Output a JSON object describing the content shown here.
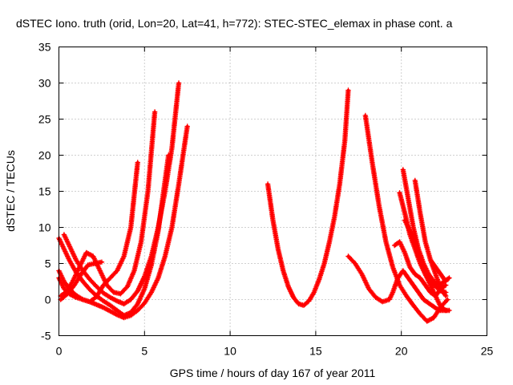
{
  "chart_data": {
    "type": "scatter",
    "title": "dSTEC Iono. truth (orid, Lon=20, Lat=41, h=772): STEC-STEC_elemax in phase cont. a",
    "xlabel": "GPS time / hours of day 167 of year 2011",
    "ylabel": "dSTEC  / TECUs",
    "xlim": [
      0,
      25
    ],
    "ylim": [
      -5,
      35
    ],
    "x_ticks": [
      0,
      5,
      10,
      15,
      20,
      25
    ],
    "x_tick_labels": [
      "0",
      "5",
      "10",
      "15",
      "20",
      "25"
    ],
    "y_ticks": [
      -5,
      0,
      5,
      10,
      15,
      20,
      25,
      30,
      35
    ],
    "y_tick_labels": [
      "-5",
      "0",
      "5",
      "10",
      "15",
      "20",
      "25",
      "30",
      "35"
    ],
    "grid": true,
    "marker": "+",
    "color": "#ff0000",
    "series": [
      {
        "x": [
          0.0,
          0.3,
          0.6,
          1.0,
          1.4,
          1.8,
          2.2,
          2.6,
          3.0,
          3.4,
          3.8,
          4.2,
          4.6,
          5.0,
          5.4,
          5.8,
          6.2,
          6.6,
          7.0,
          7.5
        ],
        "values": [
          3.0,
          1.5,
          0.8,
          0.3,
          0.0,
          -0.3,
          -0.7,
          -1.1,
          -1.6,
          -2.1,
          -2.5,
          -2.2,
          -1.5,
          -0.5,
          1.0,
          3.0,
          6.0,
          10.0,
          16.0,
          24.0
        ]
      },
      {
        "x": [
          0.3,
          0.6,
          1.0,
          1.4,
          1.8,
          2.2,
          2.6,
          3.0,
          3.4,
          3.8,
          4.2,
          4.6,
          5.0,
          5.4,
          5.8,
          6.2,
          6.6,
          7.0
        ],
        "values": [
          9.0,
          7.5,
          5.5,
          4.0,
          2.8,
          1.8,
          0.9,
          0.3,
          -0.2,
          -0.6,
          0.0,
          1.2,
          3.2,
          6.0,
          10.0,
          15.0,
          21.0,
          30.0
        ]
      },
      {
        "x": [
          0.0,
          0.3,
          0.6,
          1.0,
          1.4,
          1.8,
          2.2,
          2.6,
          3.0,
          3.4,
          3.8,
          4.2,
          4.6,
          5.0,
          5.4,
          5.8,
          6.0,
          6.4
        ],
        "values": [
          8.5,
          7.0,
          5.5,
          3.8,
          2.5,
          1.4,
          0.5,
          -0.2,
          -0.8,
          -1.5,
          -2.2,
          -1.8,
          -0.6,
          1.5,
          4.8,
          9.5,
          13.0,
          20.0
        ]
      },
      {
        "x": [
          0.1,
          0.4,
          0.8,
          1.2,
          1.6,
          2.0,
          2.4,
          2.8,
          3.2,
          3.6,
          4.0,
          4.4,
          4.8,
          5.2,
          5.6
        ],
        "values": [
          0.5,
          1.0,
          2.5,
          4.5,
          6.5,
          6.0,
          4.0,
          2.0,
          1.0,
          0.8,
          1.8,
          4.0,
          8.0,
          15.0,
          26.0
        ]
      },
      {
        "x": [
          0.0,
          0.3,
          0.6,
          1.0,
          1.4,
          1.8,
          2.2,
          2.6,
          3.0,
          3.4,
          3.8,
          4.2,
          4.6
        ],
        "values": [
          4.0,
          2.5,
          1.5,
          0.6,
          0.0,
          -0.3,
          0.4,
          2.0,
          3.0,
          4.0,
          6.0,
          10.0,
          19.0
        ]
      },
      {
        "x": [
          0.1,
          0.5,
          0.9,
          1.3,
          1.7,
          2.1,
          2.5
        ],
        "values": [
          0.0,
          0.8,
          2.0,
          3.5,
          4.8,
          5.0,
          5.2
        ]
      },
      {
        "x": [
          12.2,
          12.5,
          12.8,
          13.1,
          13.4,
          13.7,
          14.0,
          14.3,
          14.6,
          14.9,
          15.2,
          15.5,
          15.8,
          16.1,
          16.4,
          16.7,
          16.9
        ],
        "values": [
          16.0,
          11.0,
          7.0,
          4.0,
          1.8,
          0.3,
          -0.6,
          -0.8,
          -0.2,
          1.0,
          2.8,
          5.0,
          8.0,
          11.5,
          16.0,
          22.0,
          29.0
        ]
      },
      {
        "x": [
          16.9,
          17.3,
          17.7,
          18.1,
          18.5,
          18.9,
          19.3,
          19.5,
          19.8,
          20.1,
          20.4,
          20.7,
          21.0,
          21.3,
          21.6,
          21.9,
          22.2,
          22.5,
          22.8
        ],
        "values": [
          6.0,
          5.0,
          3.5,
          1.5,
          0.3,
          -0.3,
          0.0,
          1.0,
          3.0,
          4.0,
          3.0,
          2.0,
          1.0,
          0.0,
          -0.5,
          -1.0,
          -1.5,
          -1.5,
          -1.5
        ]
      },
      {
        "x": [
          17.9,
          18.3,
          18.7,
          19.1,
          19.5,
          19.9,
          20.3,
          20.7,
          21.1,
          21.5,
          21.9,
          22.3,
          22.7
        ],
        "values": [
          25.5,
          19.0,
          13.0,
          8.0,
          4.5,
          2.0,
          0.5,
          -0.8,
          -2.0,
          -3.0,
          -2.5,
          -1.0,
          0.0
        ]
      },
      {
        "x": [
          19.9,
          20.2,
          20.5,
          20.8,
          21.1,
          21.4,
          21.7,
          22.0,
          22.3,
          22.6
        ],
        "values": [
          14.8,
          12.0,
          9.0,
          7.0,
          5.0,
          3.5,
          2.5,
          1.8,
          1.2,
          1.0
        ]
      },
      {
        "x": [
          20.1,
          20.4,
          20.7,
          21.0,
          21.3,
          21.6,
          21.9,
          22.2,
          22.5,
          22.8
        ],
        "values": [
          18.0,
          14.0,
          10.0,
          7.0,
          5.0,
          3.5,
          2.5,
          2.0,
          2.5,
          3.0
        ]
      },
      {
        "x": [
          20.8,
          21.1,
          21.4,
          21.7,
          22.0,
          22.3,
          22.6
        ],
        "values": [
          16.5,
          12.0,
          8.0,
          5.5,
          3.5,
          1.5,
          0.5
        ]
      },
      {
        "x": [
          20.2,
          20.5,
          20.8,
          21.1,
          21.4,
          21.7,
          22.0,
          22.3,
          22.6
        ],
        "values": [
          11.0,
          9.5,
          8.0,
          5.5,
          3.5,
          2.0,
          0.5,
          -1.0,
          -1.5
        ]
      },
      {
        "x": [
          19.6,
          19.9,
          20.2,
          20.5,
          20.8,
          21.1,
          21.4,
          21.7,
          22.0,
          22.3,
          22.6
        ],
        "values": [
          7.5,
          8.0,
          6.5,
          4.5,
          3.5,
          3.0,
          2.0,
          1.0,
          0.5,
          1.5,
          2.0
        ]
      },
      {
        "x": [
          21.7,
          22.0,
          22.3,
          22.6
        ],
        "values": [
          5.5,
          4.5,
          3.5,
          2.5
        ]
      }
    ]
  }
}
